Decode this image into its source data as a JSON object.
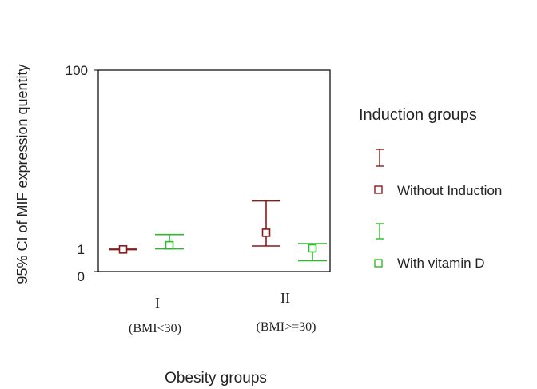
{
  "chart_data": {
    "type": "errorbar",
    "xlabel": "Obesity groups",
    "ylabel": "95% CI of MIF expression quentity",
    "categories": [
      {
        "numeral": "I",
        "sub": "(BMI<30)"
      },
      {
        "numeral": "II",
        "sub": "(BMI>=30)"
      }
    ],
    "y_ticks": [
      "100",
      "1",
      "0"
    ],
    "legend": {
      "title": "Induction groups",
      "entries": [
        "Without Induction",
        "With vitamin D"
      ]
    },
    "series": [
      {
        "name": "Without Induction",
        "color": "#8b1a1a",
        "points": [
          {
            "category": "I",
            "mean": 1.3,
            "low": 1.2,
            "high": 1.45
          },
          {
            "category": "II",
            "mean": 10.5,
            "low": 3.2,
            "high": 28
          }
        ]
      },
      {
        "name": "With vitamin D",
        "color": "#2db82d",
        "points": [
          {
            "category": "I",
            "mean": 3.6,
            "low": 1.6,
            "high": 9.5
          },
          {
            "category": "II",
            "mean": 1.9,
            "low": 0.5,
            "high": 4.5
          }
        ]
      }
    ]
  }
}
